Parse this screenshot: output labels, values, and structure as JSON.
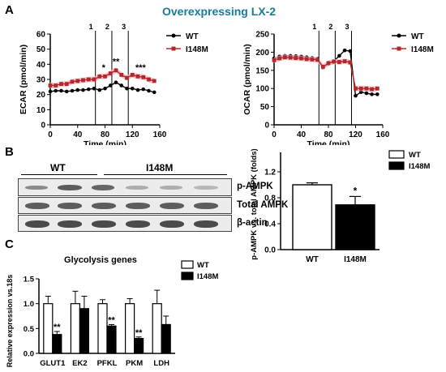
{
  "figure_title": "Overexpressing LX-2",
  "panels": {
    "a": "A",
    "b": "B",
    "c": "C"
  },
  "colors": {
    "wt": "#000000",
    "i148m": "#b5282a",
    "error_band": "#f2b8c6",
    "title": "#1a7a9a"
  },
  "blot": {
    "group_wt": "WT",
    "group_i148m": "I148M",
    "rows": [
      "p-AMPK",
      "Total AMPK",
      "β-actin"
    ]
  },
  "chart_data": [
    {
      "type": "line",
      "title": "",
      "xlabel": "Time (min)",
      "ylabel": "ECAR (pmol/min)",
      "xlim": [
        0,
        160
      ],
      "ylim": [
        0,
        60
      ],
      "xticks": [
        0,
        40,
        80,
        120,
        160
      ],
      "yticks": [
        0,
        10,
        20,
        30,
        40,
        50,
        60
      ],
      "injections": [
        {
          "x": 66,
          "label": "1"
        },
        {
          "x": 90,
          "label": "2"
        },
        {
          "x": 114,
          "label": "3"
        }
      ],
      "series": [
        {
          "name": "WT",
          "x": [
            0,
            8,
            16,
            24,
            32,
            40,
            48,
            56,
            64,
            72,
            80,
            88,
            96,
            104,
            112,
            120,
            128,
            136,
            144,
            152
          ],
          "values": [
            22,
            22.5,
            22.5,
            22,
            22.5,
            23,
            23,
            23.5,
            24,
            23,
            24,
            26,
            28,
            26,
            24,
            24,
            23,
            23.5,
            22.5,
            21.5
          ]
        },
        {
          "name": "I148M",
          "x": [
            0,
            8,
            16,
            24,
            32,
            40,
            48,
            56,
            64,
            72,
            80,
            88,
            96,
            104,
            112,
            120,
            128,
            136,
            144,
            152
          ],
          "values": [
            26,
            26,
            27,
            27,
            28.5,
            29,
            29.5,
            30,
            30,
            32,
            32,
            34,
            36,
            33,
            31,
            33,
            32,
            31.5,
            30,
            29
          ]
        }
      ],
      "annotations": [
        {
          "x": 78,
          "text": "*"
        },
        {
          "x": 96,
          "text": "**"
        },
        {
          "x": 132,
          "text": "***"
        }
      ]
    },
    {
      "type": "line",
      "title": "",
      "xlabel": "Time (min)",
      "ylabel": "OCAR (pmol/min)",
      "xlim": [
        0,
        160
      ],
      "ylim": [
        0,
        250
      ],
      "xticks": [
        0,
        40,
        80,
        120,
        160
      ],
      "yticks": [
        0,
        50,
        100,
        150,
        200,
        250
      ],
      "injections": [
        {
          "x": 66,
          "label": "1"
        },
        {
          "x": 90,
          "label": "2"
        },
        {
          "x": 114,
          "label": "3"
        }
      ],
      "series": [
        {
          "name": "WT",
          "x": [
            0,
            8,
            16,
            24,
            32,
            40,
            48,
            56,
            64,
            72,
            80,
            88,
            96,
            104,
            112,
            120,
            128,
            136,
            144,
            152
          ],
          "values": [
            183,
            188,
            190,
            190,
            189,
            188,
            186,
            184,
            182,
            158,
            168,
            175,
            190,
            205,
            203,
            80,
            90,
            87,
            84,
            84
          ]
        },
        {
          "name": "I148M",
          "x": [
            0,
            8,
            16,
            24,
            32,
            40,
            48,
            56,
            64,
            72,
            80,
            88,
            96,
            104,
            112,
            120,
            128,
            136,
            144,
            152
          ],
          "values": [
            178,
            183,
            186,
            185,
            184,
            183,
            181,
            180,
            179,
            160,
            170,
            174,
            173,
            175,
            172,
            100,
            100,
            100,
            98,
            100
          ]
        }
      ],
      "annotations": []
    },
    {
      "type": "bar",
      "title": "",
      "xlabel": "",
      "ylabel": "p-AMPK vs. total AMPK (folds)",
      "categories": [
        "WT",
        "I148M"
      ],
      "values": [
        1.0,
        0.69
      ],
      "errors": [
        0.03,
        0.13
      ],
      "ylim": [
        0,
        1.5
      ],
      "yticks": [
        0.0,
        0.4,
        0.8,
        1.2
      ],
      "legend": [
        "WT",
        "I148M"
      ],
      "annotations": [
        {
          "category": "I148M",
          "text": "*"
        }
      ]
    },
    {
      "type": "bar",
      "title": "Glycolysis genes",
      "xlabel": "",
      "ylabel": "Relative expression vs.18s",
      "categories": [
        "GLUT1",
        "EK2",
        "PFKL",
        "PKM",
        "LDH"
      ],
      "ylim": [
        0,
        1.5
      ],
      "yticks": [
        0.0,
        0.5,
        1.0,
        1.5
      ],
      "series": [
        {
          "name": "WT",
          "values": [
            1.0,
            1.0,
            1.0,
            1.0,
            1.0
          ],
          "errors": [
            0.15,
            0.25,
            0.08,
            0.1,
            0.27
          ]
        },
        {
          "name": "I148M",
          "values": [
            0.38,
            0.9,
            0.55,
            0.3,
            0.58
          ],
          "errors": [
            0.06,
            0.25,
            0.03,
            0.03,
            0.17
          ]
        }
      ],
      "annotations": [
        {
          "category": "GLUT1",
          "text": "**"
        },
        {
          "category": "PFKL",
          "text": "**"
        },
        {
          "category": "PKM",
          "text": "**"
        }
      ]
    }
  ]
}
